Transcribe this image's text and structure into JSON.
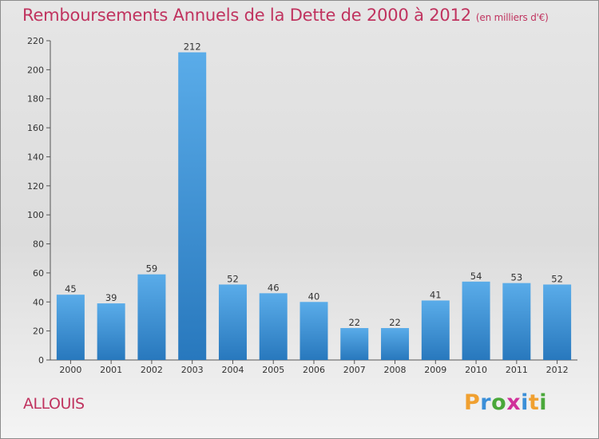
{
  "page": {
    "title": "Remboursements Annuels de la Dette de 2000 à 2012",
    "subtitle": "(en milliers d'€)",
    "town": "ALLOUIS",
    "logo": {
      "text": "Proxiti",
      "letters": [
        {
          "ch": "P",
          "color": "#f0a030"
        },
        {
          "ch": "r",
          "color": "#3b8fd8"
        },
        {
          "ch": "o",
          "color": "#4aa83a"
        },
        {
          "ch": "x",
          "color": "#d0309a"
        },
        {
          "ch": "i",
          "color": "#3b8fd8"
        },
        {
          "ch": "t",
          "color": "#f0a030"
        },
        {
          "ch": "i",
          "color": "#4aa83a"
        }
      ]
    }
  },
  "chart_data": {
    "type": "bar",
    "title": "Remboursements Annuels de la Dette de 2000 à 2012",
    "subtitle": "(en milliers d'€)",
    "categories": [
      "2000",
      "2001",
      "2002",
      "2003",
      "2004",
      "2005",
      "2006",
      "2007",
      "2008",
      "2009",
      "2010",
      "2011",
      "2012"
    ],
    "values": [
      45,
      39,
      59,
      212,
      52,
      46,
      40,
      22,
      22,
      41,
      54,
      53,
      52
    ],
    "ylim": [
      0,
      220
    ],
    "yticks": [
      0,
      20,
      40,
      60,
      80,
      100,
      120,
      140,
      160,
      180,
      200,
      220
    ],
    "grid": false,
    "bar_color_light": "#5aace9",
    "bar_color_dark": "#2878bd"
  }
}
